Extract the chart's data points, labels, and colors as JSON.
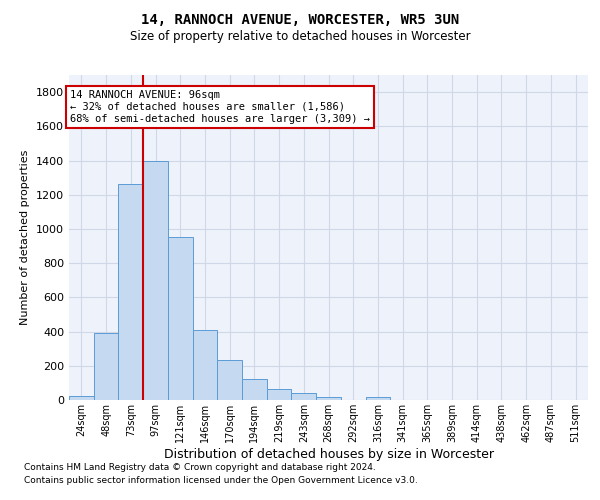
{
  "title1": "14, RANNOCH AVENUE, WORCESTER, WR5 3UN",
  "title2": "Size of property relative to detached houses in Worcester",
  "xlabel": "Distribution of detached houses by size in Worcester",
  "ylabel": "Number of detached properties",
  "footnote1": "Contains HM Land Registry data © Crown copyright and database right 2024.",
  "footnote2": "Contains public sector information licensed under the Open Government Licence v3.0.",
  "bin_labels": [
    "24sqm",
    "48sqm",
    "73sqm",
    "97sqm",
    "121sqm",
    "146sqm",
    "170sqm",
    "194sqm",
    "219sqm",
    "243sqm",
    "268sqm",
    "292sqm",
    "316sqm",
    "341sqm",
    "365sqm",
    "389sqm",
    "414sqm",
    "438sqm",
    "462sqm",
    "487sqm",
    "511sqm"
  ],
  "bar_values": [
    25,
    390,
    1260,
    1400,
    950,
    410,
    235,
    120,
    65,
    40,
    18,
    0,
    18,
    0,
    0,
    0,
    0,
    0,
    0,
    0,
    0
  ],
  "bar_color": "#c5d9f0",
  "bar_edge_color": "#5b9bd5",
  "ylim": [
    0,
    1900
  ],
  "yticks": [
    0,
    200,
    400,
    600,
    800,
    1000,
    1200,
    1400,
    1600,
    1800
  ],
  "vline_x": 3.0,
  "annotation_title": "14 RANNOCH AVENUE: 96sqm",
  "annotation_line1": "← 32% of detached houses are smaller (1,586)",
  "annotation_line2": "68% of semi-detached houses are larger (3,309) →",
  "annotation_color": "#cc0000",
  "vline_color": "#cc0000",
  "grid_color": "#d0d8e8",
  "bg_color": "#eef2fa"
}
